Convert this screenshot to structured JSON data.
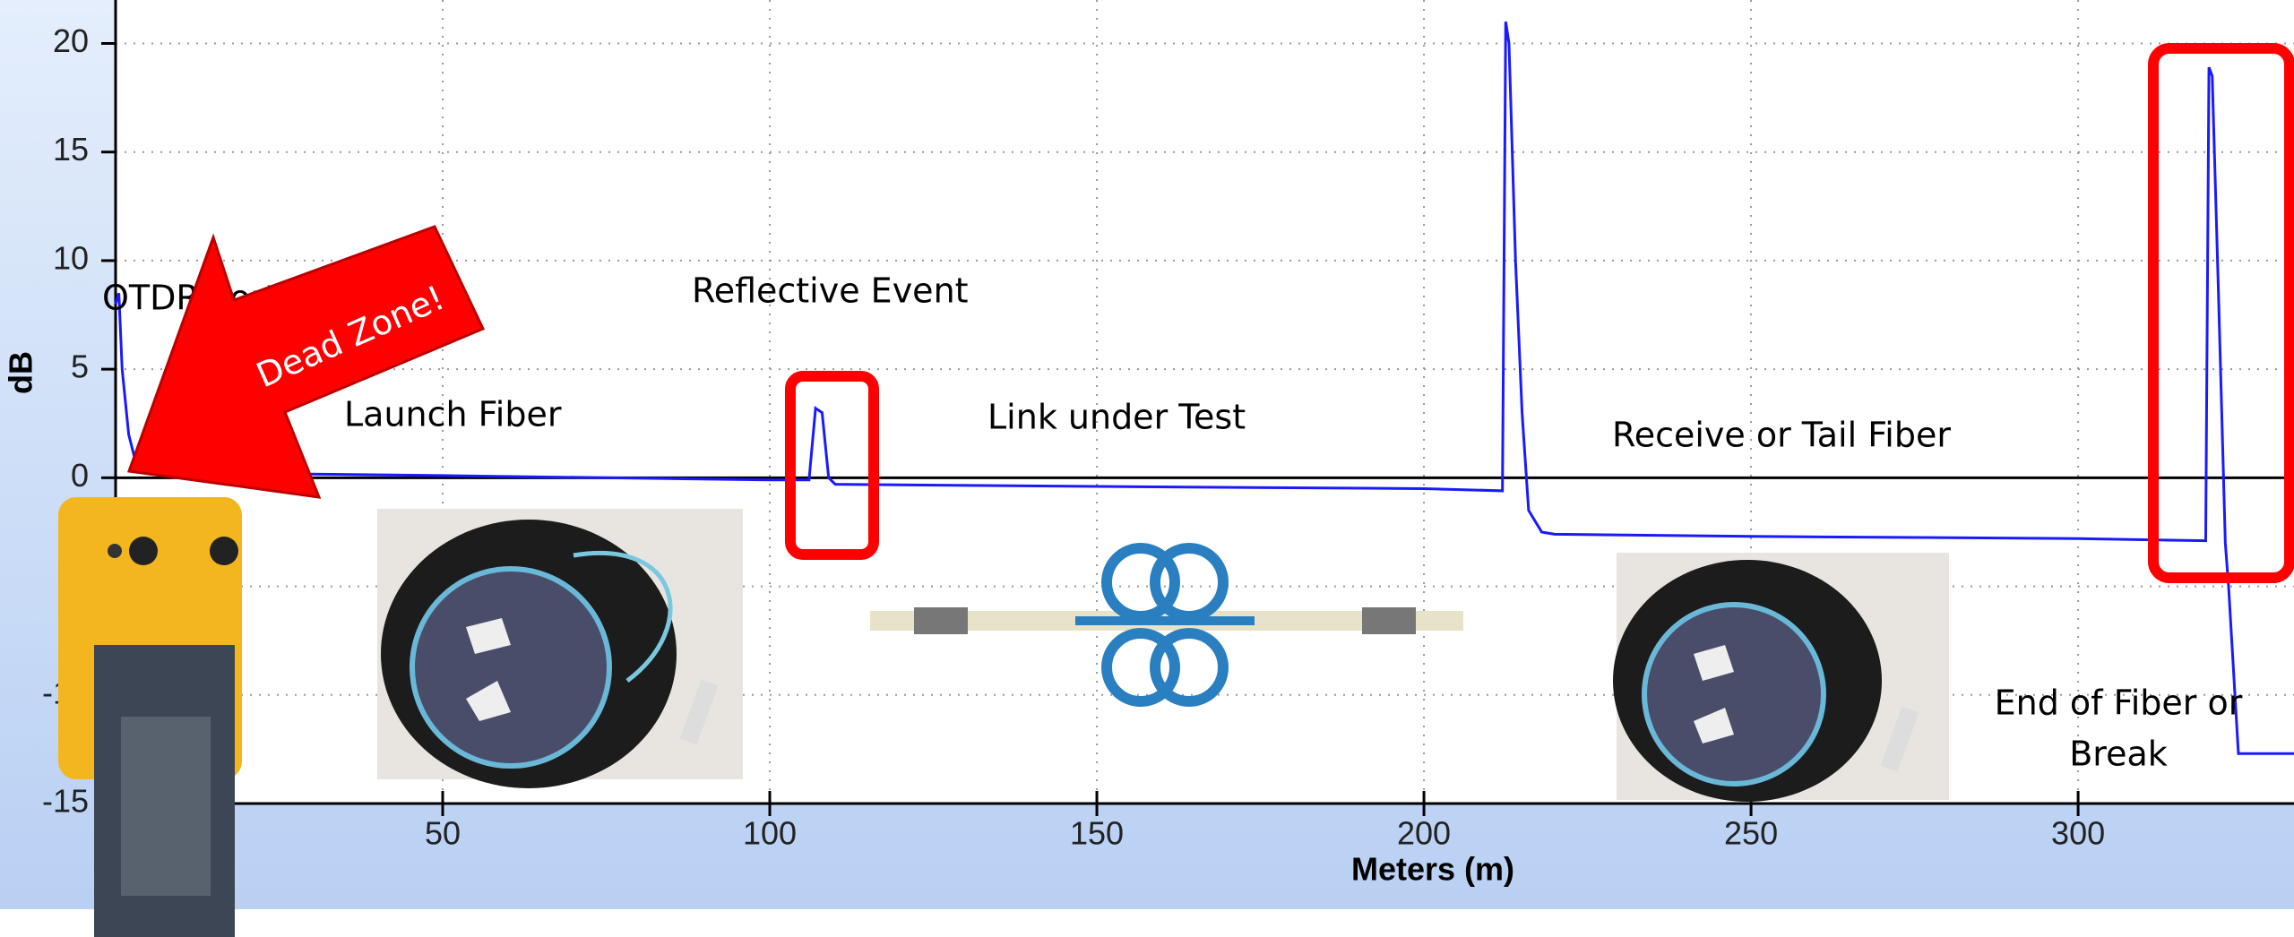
{
  "chart_data": {
    "type": "line",
    "x_label": "Meters (m)",
    "y_label": "dB",
    "xlim": [
      0,
      333
    ],
    "ylim": [
      -15,
      22
    ],
    "xticks": [
      50,
      100,
      150,
      200,
      250,
      300
    ],
    "yticks": [
      -15,
      -10,
      -5,
      0,
      5,
      10,
      15,
      20
    ],
    "grid": true,
    "reference_line": 0,
    "x": [
      0,
      0.5,
      1,
      2,
      3,
      5,
      20,
      50,
      100,
      106,
      107,
      108,
      109,
      110,
      150,
      200,
      212,
      212.5,
      213,
      214,
      215,
      216,
      218,
      220,
      250,
      300,
      319.5,
      320,
      320.5,
      321.5,
      322.5,
      323,
      324.5,
      333
    ],
    "series": [
      {
        "color": "#1a1aff",
        "values": [
          8,
          8.5,
          5,
          2,
          0.8,
          0.3,
          0.2,
          0.1,
          -0.1,
          -0.1,
          3.2,
          3,
          0,
          -0.3,
          -0.4,
          -0.5,
          -0.6,
          21,
          20,
          10,
          3,
          -1.5,
          -2.5,
          -2.6,
          -2.7,
          -2.8,
          -2.9,
          18.9,
          18.5,
          8,
          -3,
          -5,
          -12.7,
          -12.7
        ]
      }
    ],
    "annotations": [
      "OTDR Port",
      "Reflective Event",
      "Launch Fiber",
      "Link under Test",
      "Receive or Tail Fiber",
      "End of Fiber or",
      "Break",
      "Dead Zone!"
    ]
  }
}
